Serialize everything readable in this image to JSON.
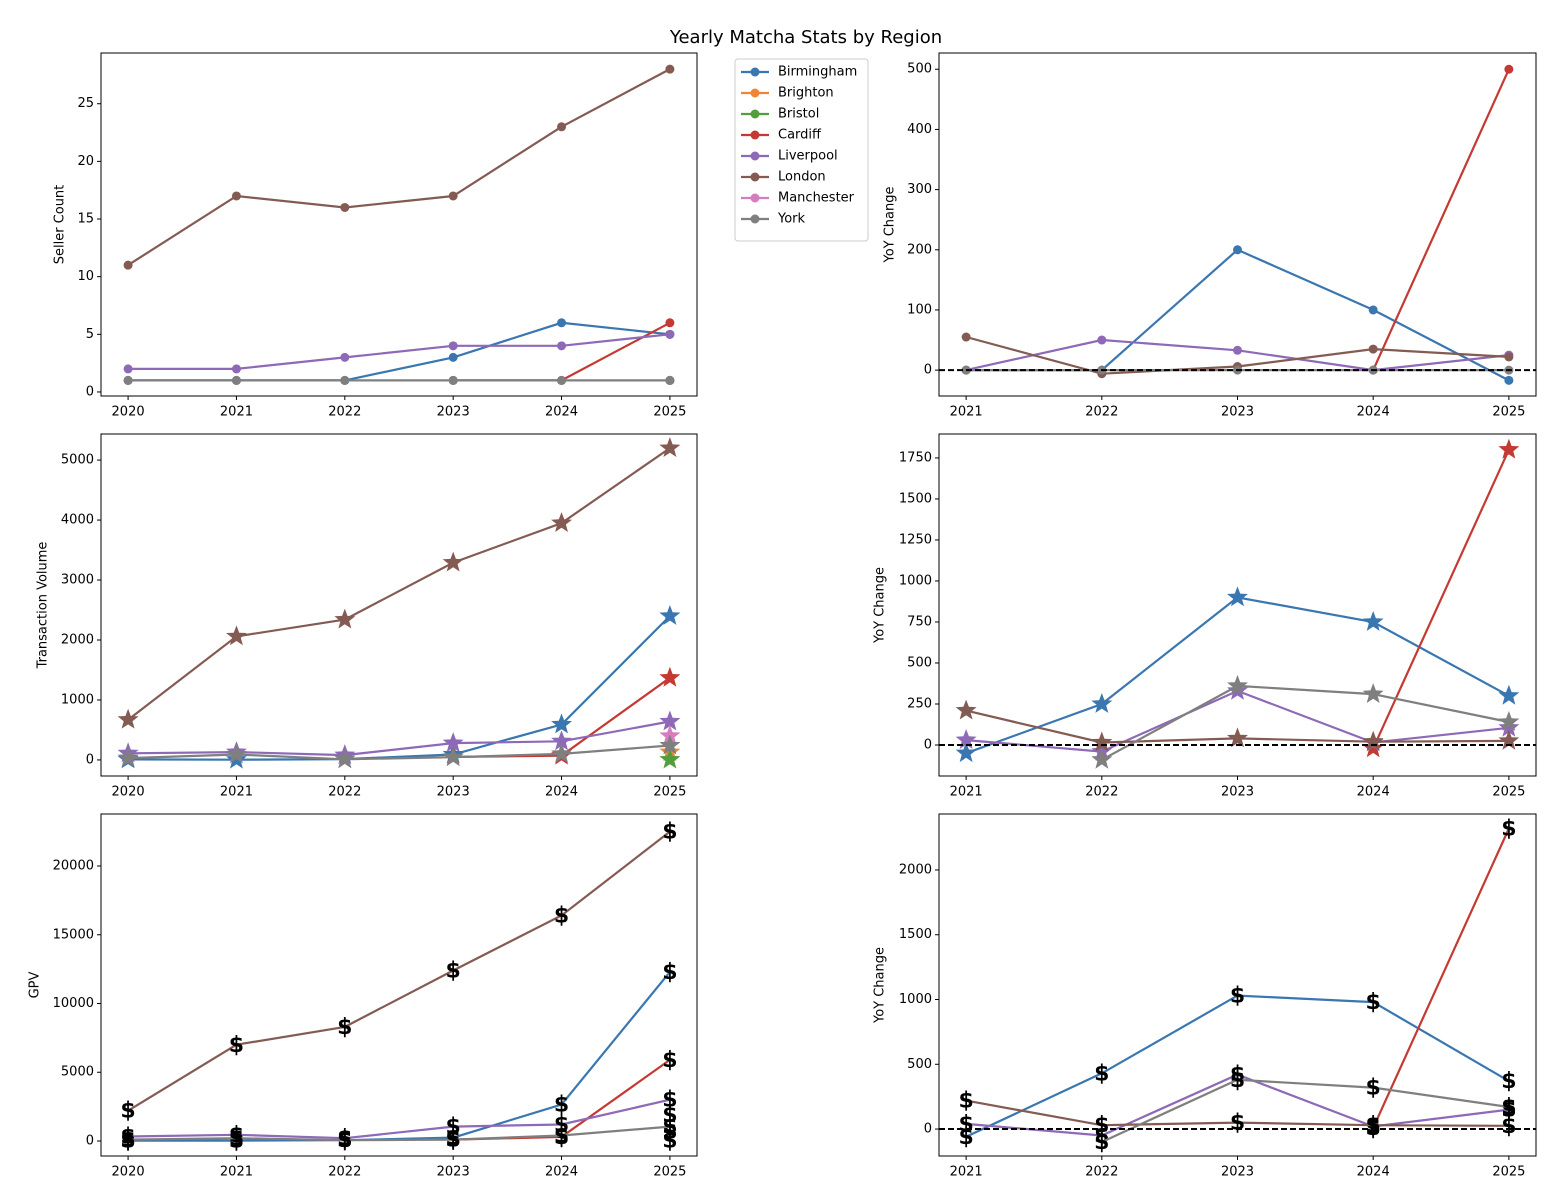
{
  "title": "Yearly Matcha Stats by Region",
  "chart_data": [
    {
      "type": "line",
      "ylabel": "Seller Count",
      "marker": "o",
      "legend": "outside-right",
      "x": [
        2020,
        2021,
        2022,
        2023,
        2024,
        2025
      ],
      "xlim": [
        2019.75,
        2025.25
      ],
      "xticks": [
        2020,
        2021,
        2022,
        2023,
        2024,
        2025
      ],
      "ylim": [
        -0.35,
        29.4
      ],
      "yticks": [
        0,
        5,
        10,
        15,
        20,
        25
      ],
      "series": [
        {
          "name": "Birmingham",
          "color": "#3a76af",
          "values": [
            1,
            1,
            1,
            3,
            6,
            5
          ]
        },
        {
          "name": "Brighton",
          "color": "#ef8636",
          "values": [
            null,
            null,
            null,
            null,
            null,
            1
          ]
        },
        {
          "name": "Bristol",
          "color": "#529e3e",
          "values": [
            null,
            null,
            null,
            null,
            null,
            1
          ]
        },
        {
          "name": "Cardiff",
          "color": "#c43a32",
          "values": [
            null,
            null,
            null,
            1,
            1,
            6
          ]
        },
        {
          "name": "Liverpool",
          "color": "#8d69b8",
          "values": [
            2,
            2,
            3,
            4,
            4,
            5
          ]
        },
        {
          "name": "London",
          "color": "#845b53",
          "values": [
            11,
            17,
            16,
            17,
            23,
            28
          ]
        },
        {
          "name": "Manchester",
          "color": "#d57dbf",
          "values": [
            null,
            null,
            null,
            null,
            null,
            1
          ]
        },
        {
          "name": "York",
          "color": "#7f7f7f",
          "values": [
            1,
            1,
            1,
            1,
            1,
            1
          ]
        }
      ]
    },
    {
      "type": "line",
      "ylabel": "YoY Change",
      "marker": "o",
      "zero_line": true,
      "x": [
        2021,
        2022,
        2023,
        2024,
        2025
      ],
      "xlim": [
        2020.8,
        2025.2
      ],
      "xticks": [
        2021,
        2022,
        2023,
        2024,
        2025
      ],
      "ylim": [
        -43,
        527
      ],
      "yticks": [
        0,
        100,
        200,
        300,
        400,
        500
      ],
      "series": [
        {
          "color": "#3a76af",
          "values": [
            0,
            0,
            200,
            100,
            -17
          ]
        },
        {
          "color": "#c43a32",
          "values": [
            null,
            null,
            null,
            0,
            500
          ]
        },
        {
          "color": "#8d69b8",
          "values": [
            0,
            50,
            33,
            0,
            25
          ]
        },
        {
          "color": "#845b53",
          "values": [
            55,
            -6,
            6,
            35,
            22
          ]
        },
        {
          "color": "#7f7f7f",
          "values": [
            0,
            0,
            0,
            0,
            0
          ]
        }
      ]
    },
    {
      "type": "line",
      "ylabel": "Transaction Volume",
      "marker": "star",
      "x": [
        2020,
        2021,
        2022,
        2023,
        2024,
        2025
      ],
      "xlim": [
        2019.75,
        2025.25
      ],
      "xticks": [
        2020,
        2021,
        2022,
        2023,
        2024,
        2025
      ],
      "ylim": [
        -268,
        5435
      ],
      "yticks": [
        0,
        1000,
        2000,
        3000,
        4000,
        5000
      ],
      "series": [
        {
          "color": "#3a76af",
          "values": [
            8,
            4,
            14,
            90,
            590,
            2400
          ]
        },
        {
          "color": "#ef8636",
          "values": [
            null,
            null,
            null,
            null,
            null,
            130
          ]
        },
        {
          "color": "#529e3e",
          "values": [
            null,
            null,
            null,
            null,
            null,
            5
          ]
        },
        {
          "color": "#c43a32",
          "values": [
            null,
            null,
            null,
            50,
            70,
            1370
          ]
        },
        {
          "color": "#8d69b8",
          "values": [
            110,
            130,
            80,
            280,
            310,
            640
          ]
        },
        {
          "color": "#845b53",
          "values": [
            670,
            2060,
            2340,
            3290,
            3950,
            5200
          ]
        },
        {
          "color": "#d57dbf",
          "values": [
            null,
            null,
            null,
            null,
            null,
            400
          ]
        },
        {
          "color": "#7f7f7f",
          "values": [
            30,
            90,
            10,
            45,
            100,
            240
          ]
        }
      ]
    },
    {
      "type": "line",
      "ylabel": "YoY Change",
      "marker": "star",
      "zero_line": true,
      "x": [
        2021,
        2022,
        2023,
        2024,
        2025
      ],
      "xlim": [
        2020.8,
        2025.2
      ],
      "xticks": [
        2021,
        2022,
        2023,
        2024,
        2025
      ],
      "ylim": [
        -189,
        1896
      ],
      "yticks": [
        0,
        250,
        500,
        750,
        1000,
        1250,
        1500,
        1750
      ],
      "series": [
        {
          "color": "#3a76af",
          "values": [
            -50,
            250,
            900,
            750,
            300
          ]
        },
        {
          "color": "#c43a32",
          "values": [
            null,
            null,
            null,
            -20,
            1800
          ]
        },
        {
          "color": "#8d69b8",
          "values": [
            30,
            -40,
            330,
            15,
            105
          ]
        },
        {
          "color": "#845b53",
          "values": [
            210,
            15,
            40,
            20,
            25
          ]
        },
        {
          "color": "#7f7f7f",
          "values": [
            null,
            -90,
            360,
            310,
            140
          ]
        }
      ]
    },
    {
      "type": "line",
      "ylabel": "GPV",
      "marker": "$",
      "x": [
        2020,
        2021,
        2022,
        2023,
        2024,
        2025
      ],
      "xlim": [
        2019.75,
        2025.25
      ],
      "xticks": [
        2020,
        2021,
        2022,
        2023,
        2024,
        2025
      ],
      "ylim": [
        -1091,
        23782
      ],
      "yticks": [
        0,
        5000,
        10000,
        15000,
        20000
      ],
      "series": [
        {
          "color": "#3a76af",
          "values": [
            20,
            30,
            60,
            250,
            2650,
            12300
          ]
        },
        {
          "color": "#ef8636",
          "values": [
            null,
            null,
            null,
            null,
            null,
            700
          ]
        },
        {
          "color": "#529e3e",
          "values": [
            null,
            null,
            null,
            null,
            null,
            50
          ]
        },
        {
          "color": "#c43a32",
          "values": [
            null,
            null,
            null,
            100,
            300,
            5900
          ]
        },
        {
          "color": "#8d69b8",
          "values": [
            330,
            450,
            200,
            1050,
            1200,
            3000
          ]
        },
        {
          "color": "#845b53",
          "values": [
            2200,
            7000,
            8300,
            12400,
            16400,
            22500
          ]
        },
        {
          "color": "#d57dbf",
          "values": [
            null,
            null,
            null,
            null,
            null,
            1900
          ]
        },
        {
          "color": "#7f7f7f",
          "values": [
            100,
            200,
            60,
            100,
            400,
            1050
          ]
        }
      ]
    },
    {
      "type": "line",
      "ylabel": "YoY Change",
      "marker": "$",
      "zero_line": true,
      "x": [
        2021,
        2022,
        2023,
        2024,
        2025
      ],
      "xlim": [
        2020.8,
        2025.2
      ],
      "xticks": [
        2021,
        2022,
        2023,
        2024,
        2025
      ],
      "ylim": [
        -208,
        2432
      ],
      "yticks": [
        0,
        500,
        1000,
        1500,
        2000
      ],
      "series": [
        {
          "color": "#3a76af",
          "values": [
            -60,
            430,
            1030,
            980,
            370
          ]
        },
        {
          "color": "#c43a32",
          "values": [
            null,
            null,
            null,
            10,
            2320
          ]
        },
        {
          "color": "#8d69b8",
          "values": [
            40,
            -50,
            420,
            20,
            150
          ]
        },
        {
          "color": "#845b53",
          "values": [
            220,
            30,
            50,
            30,
            25
          ]
        },
        {
          "color": "#7f7f7f",
          "values": [
            null,
            -100,
            380,
            320,
            170
          ]
        }
      ]
    }
  ]
}
